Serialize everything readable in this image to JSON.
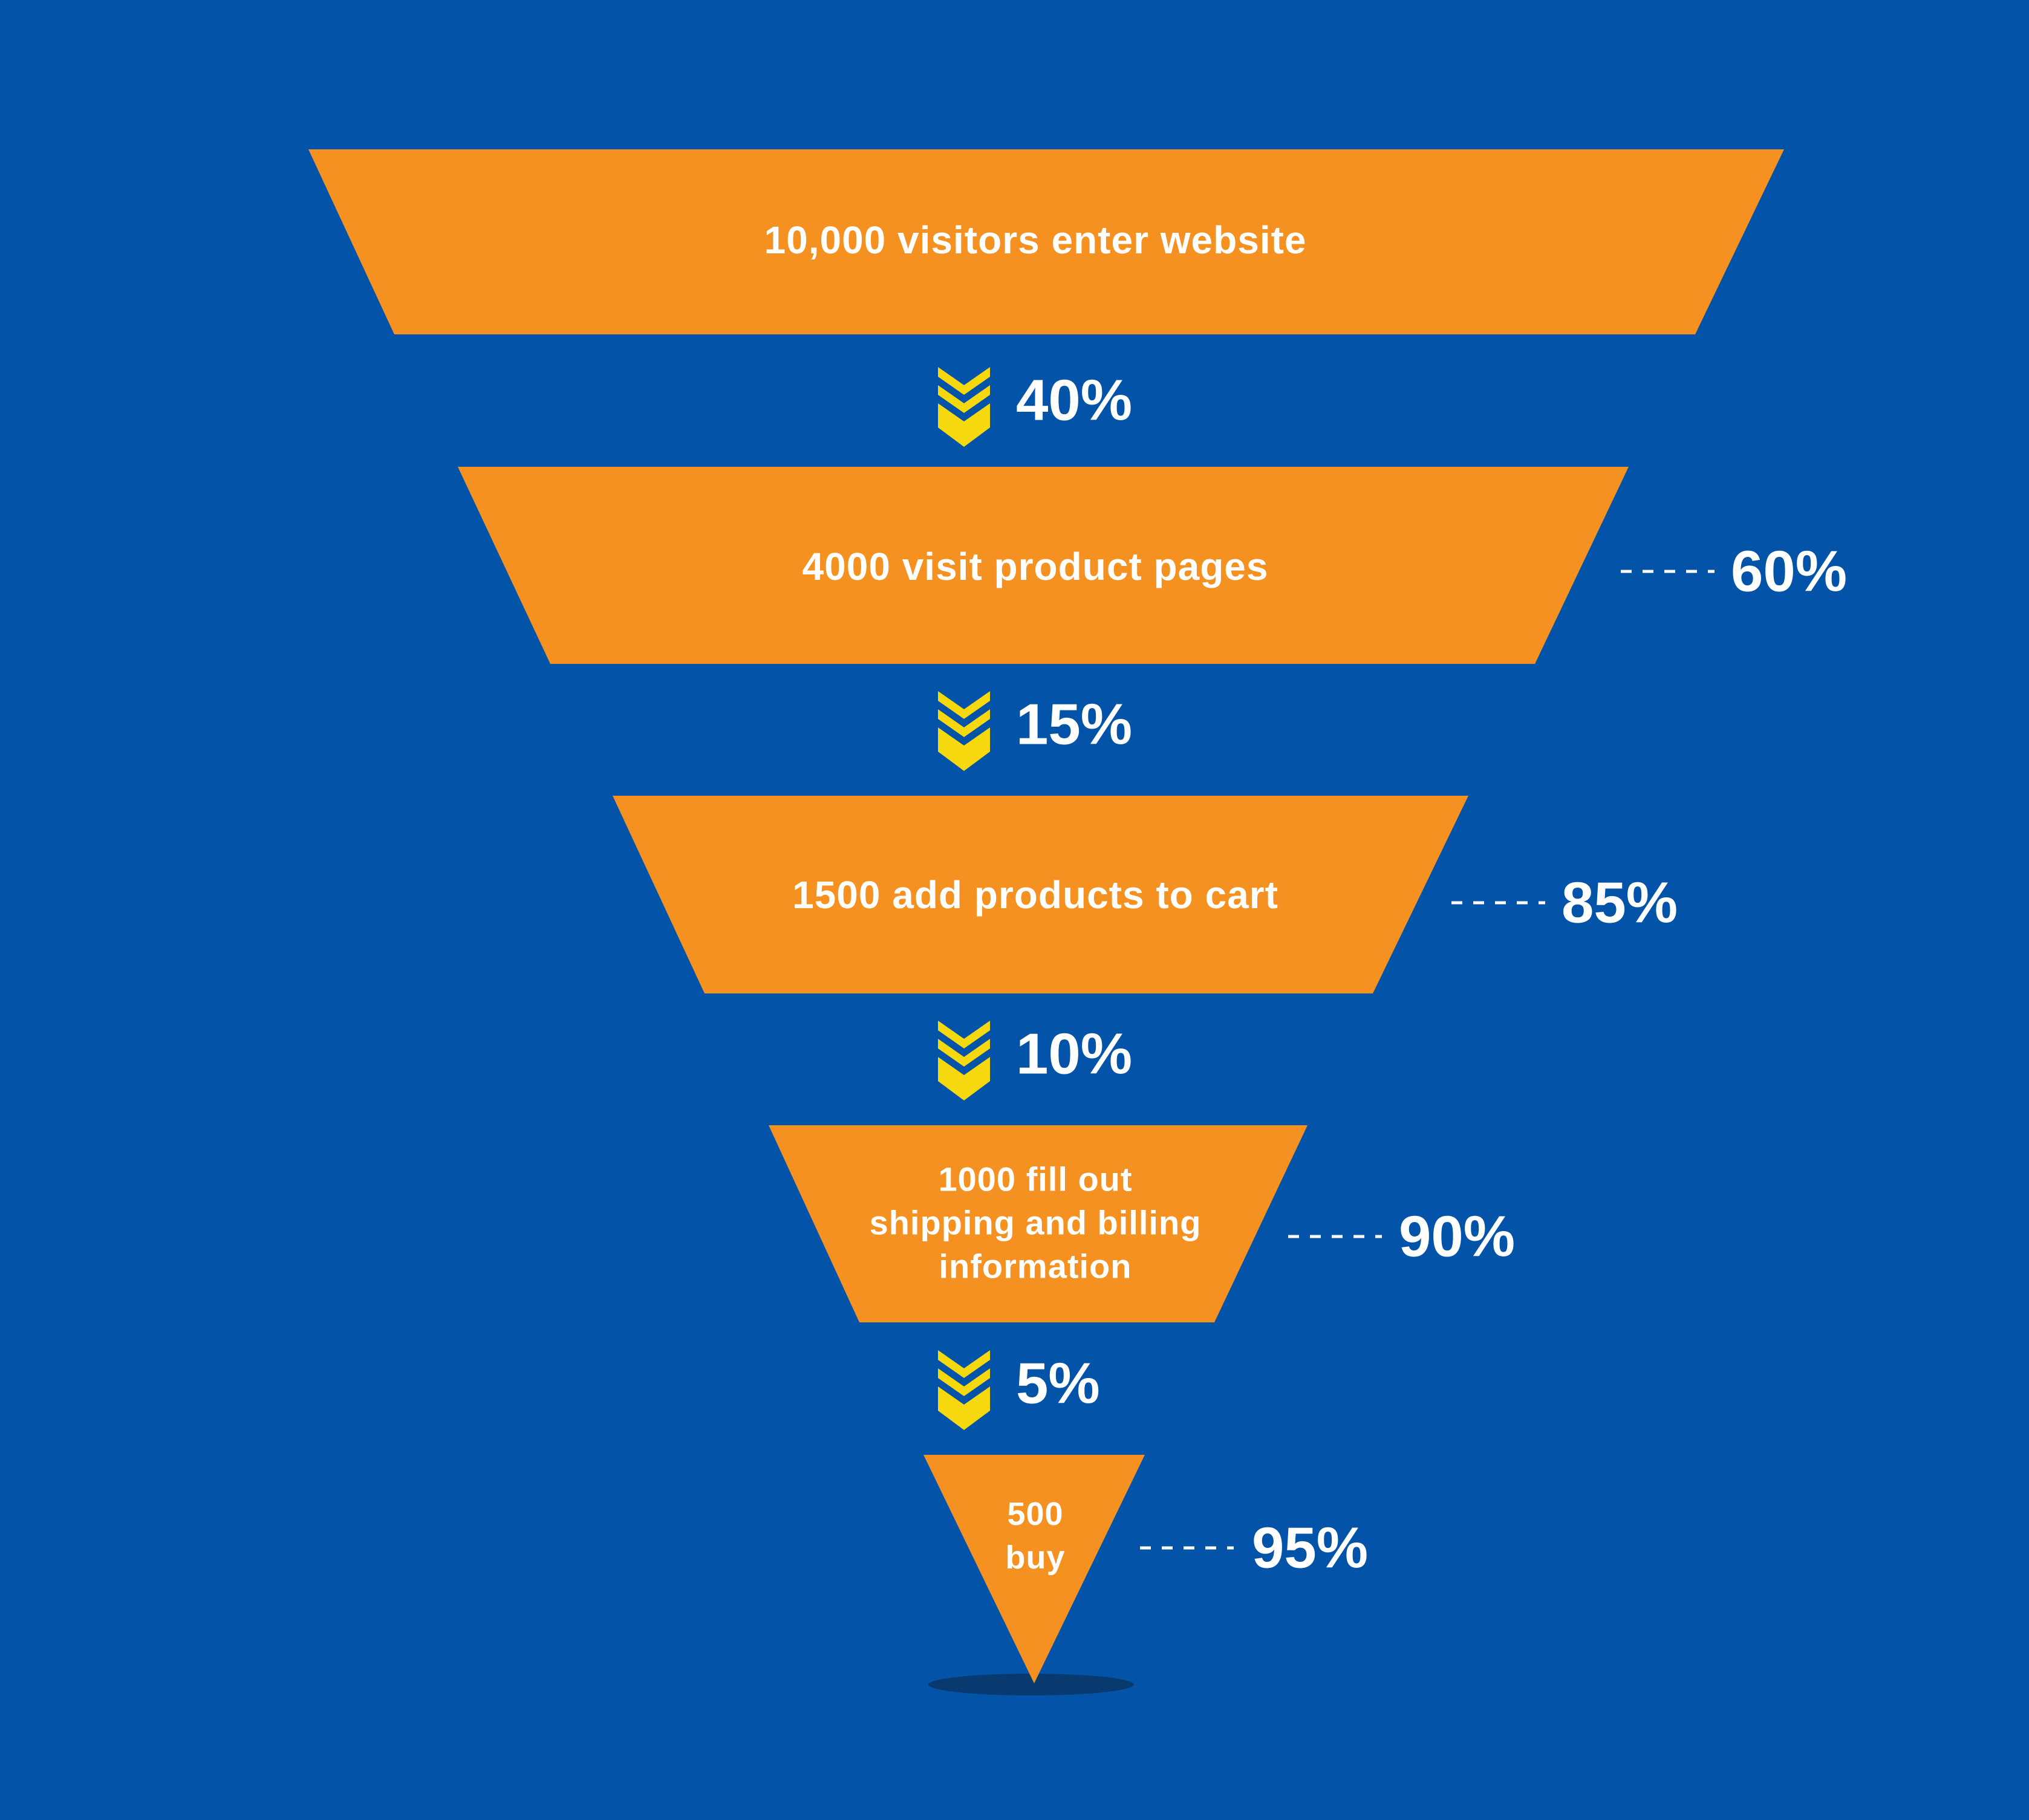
{
  "colors": {
    "background": "#0353a8",
    "stage_fill": "#f59121",
    "arrow_fill": "#f6d80f",
    "text": "#ffffff",
    "shadow": "#083a70"
  },
  "stages": [
    {
      "lines": [
        "10,000 visitors enter website"
      ]
    },
    {
      "lines": [
        "4000 visit product pages"
      ]
    },
    {
      "lines": [
        "1500 add products to cart"
      ]
    },
    {
      "lines": [
        "1000 fill out",
        "shipping and billing",
        "information"
      ]
    },
    {
      "lines": [
        "500",
        "buy"
      ]
    }
  ],
  "transitions": [
    {
      "label": "40%"
    },
    {
      "label": "15%"
    },
    {
      "label": "10%"
    },
    {
      "label": "5%"
    }
  ],
  "dropoffs": [
    {
      "stage": 1,
      "label": "60%"
    },
    {
      "stage": 2,
      "label": "85%"
    },
    {
      "stage": 3,
      "label": "90%"
    },
    {
      "stage": 4,
      "label": "95%"
    }
  ],
  "chart_data": {
    "type": "funnel",
    "stages": [
      {
        "count": 10000,
        "label": "10,000 visitors enter website"
      },
      {
        "count": 4000,
        "label": "4000 visit product pages"
      },
      {
        "count": 1500,
        "label": "1500 add products to cart"
      },
      {
        "count": 1000,
        "label": "1000 fill out shipping and billing information"
      },
      {
        "count": 500,
        "label": "500 buy"
      }
    ],
    "conversion_rates": [
      "40%",
      "15%",
      "10%",
      "5%"
    ],
    "dropoff_rates": [
      "60%",
      "85%",
      "90%",
      "95%"
    ]
  }
}
